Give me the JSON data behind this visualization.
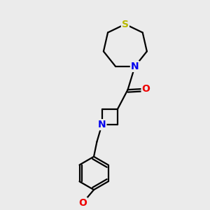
{
  "background_color": "#ebebeb",
  "atom_colors": {
    "S": "#b8b800",
    "N": "#0000ee",
    "O": "#ee0000",
    "C": "#000000"
  },
  "bond_color": "#000000",
  "bond_width": 1.6,
  "figsize": [
    3.0,
    3.0
  ],
  "dpi": 100
}
